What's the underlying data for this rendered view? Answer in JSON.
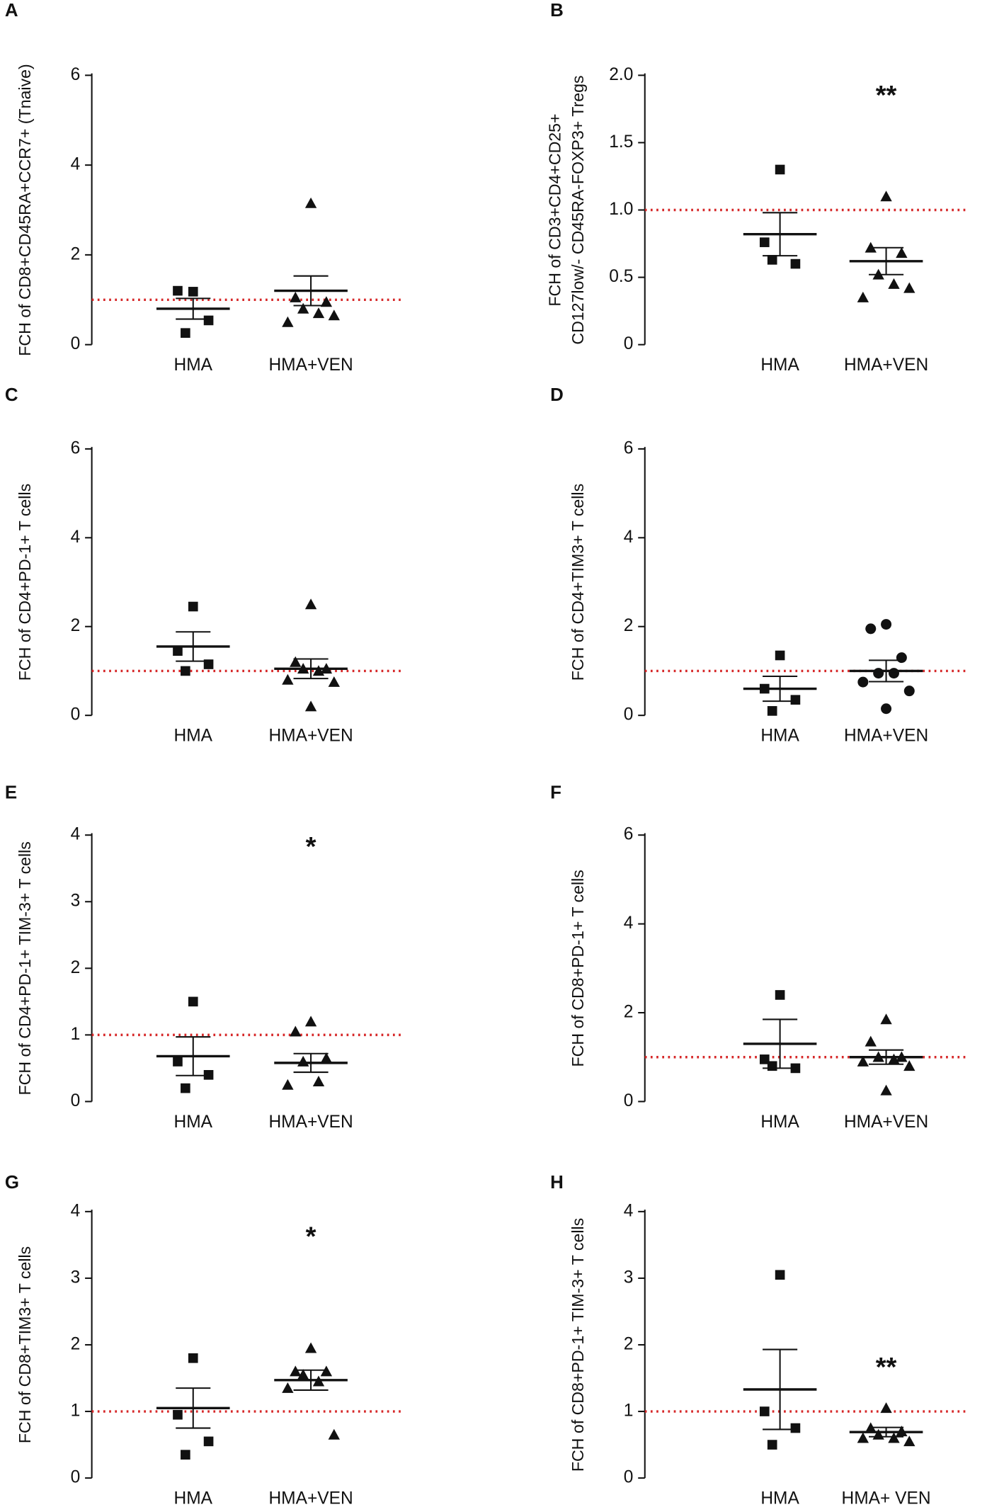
{
  "chart_data": [
    {
      "type": "dotplot",
      "panel": "A",
      "ylabel": [
        "FCH of CD8+CD45RA+CCR7+ (Tnaive)"
      ],
      "categories": [
        "HMA",
        "HMA+VEN"
      ],
      "groups": [
        {
          "marker": "square",
          "values": [
            1.18,
            1.2,
            0.54,
            0.26
          ],
          "mean": 0.8,
          "sem": 0.23
        },
        {
          "marker": "triangle",
          "values": [
            3.15,
            1.05,
            0.95,
            0.8,
            0.7,
            0.5,
            0.65
          ],
          "mean": 1.2,
          "sem": 0.33
        }
      ],
      "ylim": [
        0,
        6
      ],
      "yticks": [
        0,
        2,
        4,
        6
      ],
      "reference_line": 1,
      "reference_color": "#d62728"
    },
    {
      "type": "dotplot",
      "panel": "B",
      "ylabel": [
        "FCH of CD3+CD4+CD25+",
        "CD127low/- CD45RA-FOXP3+ Tregs"
      ],
      "categories": [
        "HMA",
        "HMA+VEN"
      ],
      "groups": [
        {
          "marker": "square",
          "values": [
            1.3,
            0.76,
            0.6,
            0.63
          ],
          "mean": 0.82,
          "sem": 0.16
        },
        {
          "marker": "triangle",
          "values": [
            1.1,
            0.72,
            0.68,
            0.52,
            0.45,
            0.35,
            0.42
          ],
          "mean": 0.62,
          "sem": 0.1
        }
      ],
      "ylim": [
        0,
        2
      ],
      "yticks": [
        0,
        0.5,
        {
          "value": 1,
          "label": "1.0"
        },
        1.5,
        {
          "value": 2,
          "label": "2.0"
        }
      ],
      "reference_line": 1,
      "reference_color": "#d62728",
      "annotation": "**",
      "annotation_group": 1
    },
    {
      "type": "dotplot",
      "panel": "C",
      "ylabel": [
        "FCH of CD4+PD-1+ T cells"
      ],
      "categories": [
        "HMA",
        "HMA+VEN"
      ],
      "groups": [
        {
          "marker": "square",
          "values": [
            2.45,
            1.45,
            1.15,
            1.0
          ],
          "mean": 1.55,
          "sem": 0.33
        },
        {
          "marker": "triangle",
          "values": [
            2.5,
            1.2,
            1.05,
            1.05,
            1.0,
            0.8,
            0.75,
            0.2
          ],
          "mean": 1.05,
          "sem": 0.22
        }
      ],
      "ylim": [
        0,
        6
      ],
      "yticks": [
        0,
        2,
        4,
        6
      ],
      "reference_line": 1,
      "reference_color": "#d62728"
    },
    {
      "type": "dotplot",
      "panel": "D",
      "ylabel": [
        "FCH of CD4+TIM3+ T cells"
      ],
      "categories": [
        "HMA",
        "HMA+VEN"
      ],
      "groups": [
        {
          "marker": "square",
          "values": [
            1.35,
            0.6,
            0.35,
            0.1
          ],
          "mean": 0.6,
          "sem": 0.28
        },
        {
          "marker": "circle",
          "values": [
            2.05,
            1.95,
            1.3,
            0.95,
            0.95,
            0.75,
            0.55,
            0.15
          ],
          "mean": 1.0,
          "sem": 0.24
        }
      ],
      "ylim": [
        0,
        6
      ],
      "yticks": [
        0,
        2,
        4,
        6
      ],
      "reference_line": 1,
      "reference_color": "#d62728"
    },
    {
      "type": "dotplot",
      "panel": "E",
      "ylabel": [
        "FCH of CD4+PD-1+ TIM-3+ T cells"
      ],
      "categories": [
        "HMA",
        "HMA+VEN"
      ],
      "groups": [
        {
          "marker": "square",
          "values": [
            1.5,
            0.6,
            0.4,
            0.2
          ],
          "mean": 0.68,
          "sem": 0.29
        },
        {
          "marker": "triangle",
          "values": [
            1.2,
            1.05,
            0.65,
            0.6,
            0.3,
            0.25
          ],
          "mean": 0.58,
          "sem": 0.14
        }
      ],
      "ylim": [
        0,
        4
      ],
      "yticks": [
        0,
        1,
        2,
        3,
        4
      ],
      "reference_line": 1,
      "reference_color": "#d62728",
      "annotation": "*",
      "annotation_group": 1
    },
    {
      "type": "dotplot",
      "panel": "F",
      "ylabel": [
        "FCH of CD8+PD-1+ T cells"
      ],
      "categories": [
        "HMA",
        "HMA+VEN"
      ],
      "groups": [
        {
          "marker": "square",
          "values": [
            2.4,
            0.95,
            0.75,
            0.8
          ],
          "mean": 1.3,
          "sem": 0.55
        },
        {
          "marker": "triangle",
          "values": [
            1.85,
            1.35,
            1.0,
            1.0,
            0.95,
            0.9,
            0.8,
            0.25
          ],
          "mean": 1.0,
          "sem": 0.16
        }
      ],
      "ylim": [
        0,
        6
      ],
      "yticks": [
        0,
        2,
        4,
        6
      ],
      "reference_line": 1,
      "reference_color": "#d62728"
    },
    {
      "type": "dotplot",
      "panel": "G",
      "ylabel": [
        "FCH of CD8+TIM3+ T cells"
      ],
      "categories": [
        "HMA",
        "HMA+VEN"
      ],
      "groups": [
        {
          "marker": "square",
          "values": [
            1.8,
            0.95,
            0.55,
            0.35
          ],
          "mean": 1.05,
          "sem": 0.3
        },
        {
          "marker": "triangle",
          "values": [
            1.95,
            1.6,
            1.6,
            1.55,
            1.45,
            1.35,
            0.65
          ],
          "mean": 1.47,
          "sem": 0.15
        }
      ],
      "ylim": [
        0,
        4
      ],
      "yticks": [
        0,
        1,
        2,
        3,
        4
      ],
      "reference_line": 1,
      "reference_color": "#d62728",
      "annotation": "*",
      "annotation_group": 1
    },
    {
      "type": "dotplot",
      "panel": "H",
      "ylabel": [
        "FCH of CD8+PD-1+ TIM-3+ T cells"
      ],
      "categories": [
        "HMA",
        "HMA+ VEN"
      ],
      "groups": [
        {
          "marker": "square",
          "values": [
            3.05,
            1.0,
            0.75,
            0.5
          ],
          "mean": 1.33,
          "sem": 0.6
        },
        {
          "marker": "triangle",
          "values": [
            1.05,
            0.75,
            0.7,
            0.65,
            0.6,
            0.6,
            0.55
          ],
          "mean": 0.69,
          "sem": 0.07
        }
      ],
      "ylim": [
        0,
        4
      ],
      "yticks": [
        0,
        1,
        2,
        3,
        4
      ],
      "reference_line": 1,
      "reference_color": "#d62728",
      "annotation": "**",
      "annotation_group": 1
    }
  ]
}
